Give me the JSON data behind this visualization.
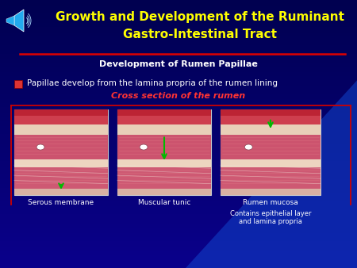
{
  "title_line1": "Growth and Development of the Ruminant",
  "title_line2": "Gastro-Intestinal Tract",
  "title_color": "#FFFF00",
  "title_fontsize": 11,
  "subtitle": "Development of Rumen Papillae",
  "subtitle_color": "#FFFFFF",
  "subtitle_fontsize": 8,
  "bullet_text": "Papillae develop from the lamina propria of the rumen lining",
  "bullet_color": "#FFFFFF",
  "bullet_fontsize": 7.5,
  "cross_section_label": "Cross section of the rumen",
  "cross_section_color": "#FF3333",
  "red_line_color": "#DD0000",
  "image_labels": [
    "Serous membrane",
    "Muscular tunic",
    "Rumen mucosa"
  ],
  "image_label_color": "#FFFFFF",
  "image_label_fontsize": 6.5,
  "sublabel_text": "Contains epithelial layer\nand lamina propria",
  "sublabel_color": "#FFFFFF",
  "sublabel_fontsize": 6,
  "border_color": "#CC0000",
  "speaker_color": "#00AAFF",
  "bg_dark": "#000066",
  "bg_mid": "#0000AA",
  "bg_sweep": "#1133CC"
}
